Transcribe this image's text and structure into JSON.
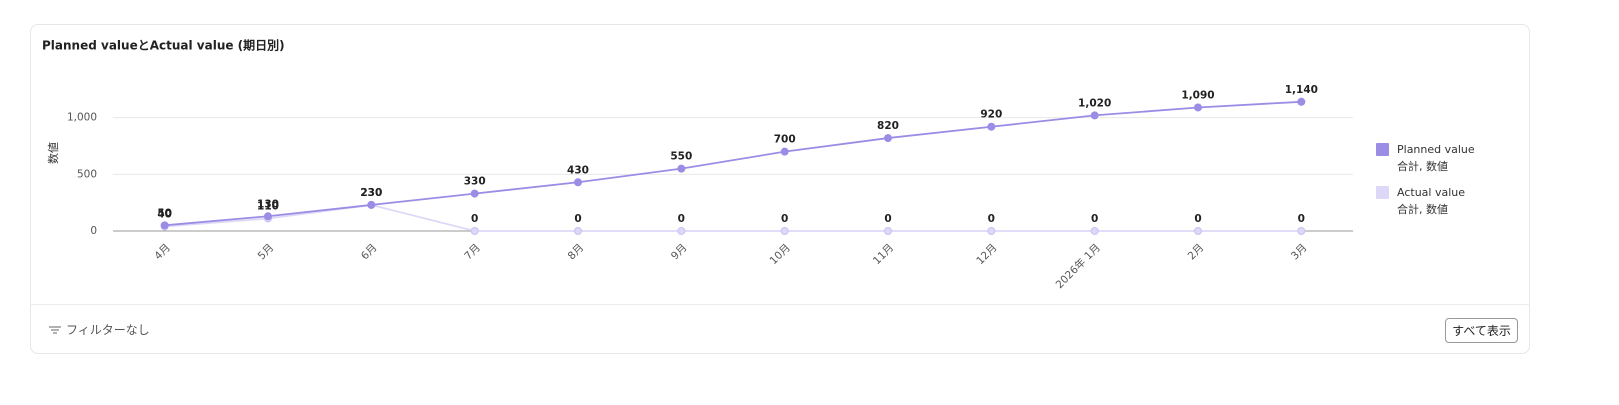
{
  "chart_data": {
    "type": "line",
    "title": "Planned valueとActual value (期日別)",
    "y_label": "数値",
    "categories": [
      "4月",
      "5月",
      "6月",
      "7月",
      "8月",
      "9月",
      "10月",
      "11月",
      "12月",
      "2026年 1月",
      "2月",
      "3月"
    ],
    "series": [
      {
        "name": "Planned value",
        "legend_subtitle": "合計, 数値",
        "color": "#9b8ce6",
        "values": [
          50,
          130,
          230,
          330,
          430,
          550,
          700,
          820,
          920,
          1020,
          1090,
          1140
        ],
        "value_labels": [
          "50",
          "130",
          "230",
          "330",
          "430",
          "550",
          "700",
          "820",
          "920",
          "1,020",
          "1,090",
          "1,140"
        ]
      },
      {
        "name": "Actual value",
        "legend_subtitle": "合計, 数値",
        "color": "#ddd8f7",
        "values": [
          40,
          110,
          230,
          0,
          0,
          0,
          0,
          0,
          0,
          0,
          0,
          0
        ]
      }
    ],
    "ylim": [
      0,
      1200
    ],
    "yticks": [
      0,
      500,
      {
        "value": 1000,
        "label": "1,000"
      }
    ],
    "grid": true
  },
  "footer": {
    "filter": "フィルターなし",
    "button": "すべて表示"
  }
}
